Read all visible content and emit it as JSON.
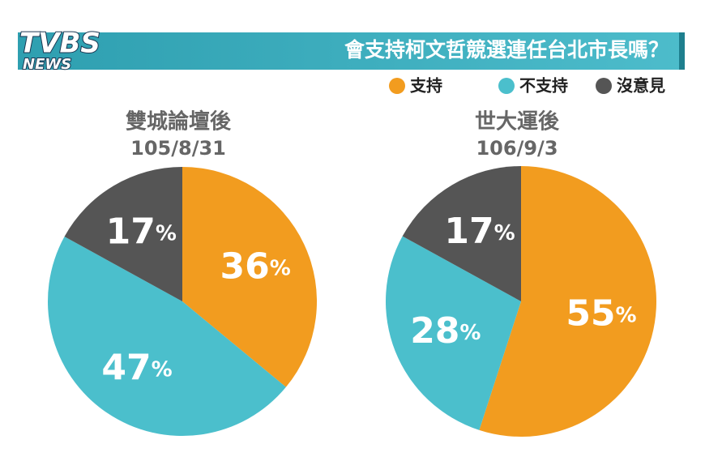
{
  "header": {
    "title": "會支持柯文哲競選連任台北市長嗎？",
    "logo": "TVBS",
    "logo_sub": "NEWS"
  },
  "legend": {
    "labels": [
      "支持",
      "不支持",
      "沒意見"
    ],
    "colors": [
      "#f29c1f",
      "#4bbfcc",
      "#555555"
    ]
  },
  "chart_data": [
    {
      "type": "pie",
      "title": "雙城論壇後",
      "subtitle": "105/8/31",
      "values": [
        36,
        47,
        17
      ],
      "value_labels": [
        "36%",
        "47%",
        "17%"
      ]
    },
    {
      "type": "pie",
      "title": "世大運後",
      "subtitle": "106/9/3",
      "values": [
        55,
        28,
        17
      ],
      "value_labels": [
        "55%",
        "28%",
        "17%"
      ]
    }
  ]
}
